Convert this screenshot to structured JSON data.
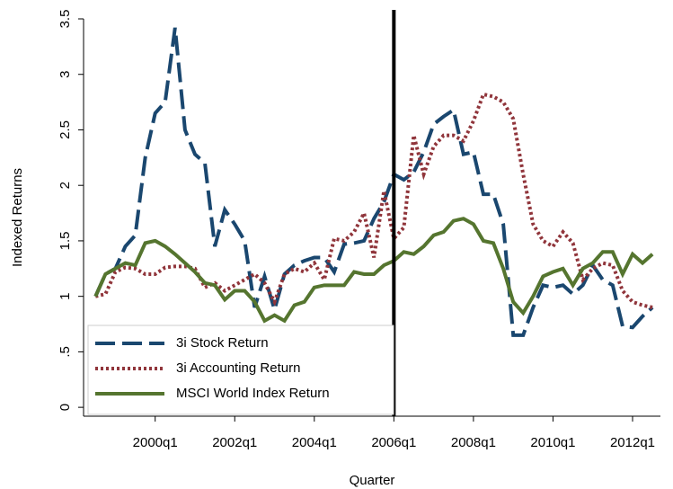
{
  "chart_data": {
    "type": "line",
    "x_label": "Quarter",
    "y_label": "Indexed Returns",
    "x": [
      1998.5,
      1998.75,
      1999,
      1999.25,
      1999.5,
      1999.75,
      2000,
      2000.25,
      2000.5,
      2000.75,
      2001,
      2001.25,
      2001.5,
      2001.75,
      2002,
      2002.25,
      2002.5,
      2002.75,
      2003,
      2003.25,
      2003.5,
      2003.75,
      2004,
      2004.25,
      2004.5,
      2004.75,
      2005,
      2005.25,
      2005.5,
      2005.75,
      2006,
      2006.25,
      2006.5,
      2006.75,
      2007,
      2007.25,
      2007.5,
      2007.75,
      2008,
      2008.25,
      2008.5,
      2008.75,
      2009,
      2009.25,
      2009.5,
      2009.75,
      2010,
      2010.25,
      2010.5,
      2010.75,
      2011,
      2011.25,
      2011.5,
      2011.75,
      2012,
      2012.25,
      2012.5
    ],
    "series": [
      {
        "name": "3i Stock Return",
        "color": "#1a476f",
        "dash": "dashed",
        "values": [
          1.0,
          1.2,
          1.25,
          1.45,
          1.55,
          2.25,
          2.65,
          2.75,
          3.42,
          2.5,
          2.28,
          2.2,
          1.45,
          1.78,
          1.65,
          1.5,
          0.9,
          1.18,
          0.88,
          1.2,
          1.28,
          1.32,
          1.35,
          1.35,
          1.22,
          1.47,
          1.48,
          1.5,
          1.7,
          1.85,
          2.1,
          2.05,
          2.12,
          2.3,
          2.55,
          2.62,
          2.68,
          2.28,
          2.3,
          1.92,
          1.92,
          1.65,
          0.65,
          0.65,
          0.9,
          1.1,
          1.08,
          1.1,
          1.02,
          1.1,
          1.28,
          1.15,
          1.1,
          0.73,
          0.72,
          0.82,
          0.9
        ]
      },
      {
        "name": "3i Accounting Return",
        "color": "#90353b",
        "dash": "dotted",
        "values": [
          1.0,
          1.02,
          1.22,
          1.26,
          1.25,
          1.2,
          1.2,
          1.26,
          1.27,
          1.27,
          1.25,
          1.08,
          1.12,
          1.05,
          1.1,
          1.15,
          1.2,
          1.12,
          0.95,
          1.2,
          1.25,
          1.22,
          1.3,
          1.15,
          1.52,
          1.5,
          1.58,
          1.75,
          1.35,
          1.95,
          1.52,
          1.62,
          2.45,
          2.1,
          2.35,
          2.45,
          2.45,
          2.4,
          2.58,
          2.82,
          2.8,
          2.75,
          2.6,
          2.1,
          1.65,
          1.5,
          1.45,
          1.58,
          1.48,
          1.15,
          1.25,
          1.3,
          1.28,
          1.05,
          0.95,
          0.92,
          0.9
        ]
      },
      {
        "name": "MSCI World Index Return",
        "color": "#55752f",
        "dash": "solid",
        "values": [
          1.0,
          1.2,
          1.25,
          1.3,
          1.28,
          1.48,
          1.5,
          1.45,
          1.38,
          1.3,
          1.22,
          1.12,
          1.1,
          0.97,
          1.05,
          1.05,
          0.95,
          0.78,
          0.83,
          0.78,
          0.92,
          0.95,
          1.08,
          1.1,
          1.1,
          1.1,
          1.22,
          1.2,
          1.2,
          1.28,
          1.32,
          1.4,
          1.38,
          1.45,
          1.55,
          1.58,
          1.68,
          1.7,
          1.65,
          1.5,
          1.48,
          1.25,
          0.95,
          0.85,
          1.0,
          1.18,
          1.22,
          1.25,
          1.1,
          1.25,
          1.3,
          1.4,
          1.4,
          1.2,
          1.38,
          1.3,
          1.38
        ]
      }
    ],
    "vline": 2006,
    "xlim": [
      1998.2,
      2012.7
    ],
    "xticks": [
      {
        "value": 2000,
        "label": "2000q1"
      },
      {
        "value": 2002,
        "label": "2002q1"
      },
      {
        "value": 2004,
        "label": "2004q1"
      },
      {
        "value": 2006,
        "label": "2006q1"
      },
      {
        "value": 2008,
        "label": "2008q1"
      },
      {
        "value": 2010,
        "label": "2010q1"
      },
      {
        "value": 2012,
        "label": "2012q1"
      }
    ],
    "ylim": [
      -0.08,
      3.5
    ],
    "yticks": [
      0,
      {
        "value": 0.5,
        "label": ".5"
      },
      1,
      1.5,
      2,
      2.5,
      3,
      3.5
    ],
    "grid": false,
    "legend": "lower left"
  }
}
